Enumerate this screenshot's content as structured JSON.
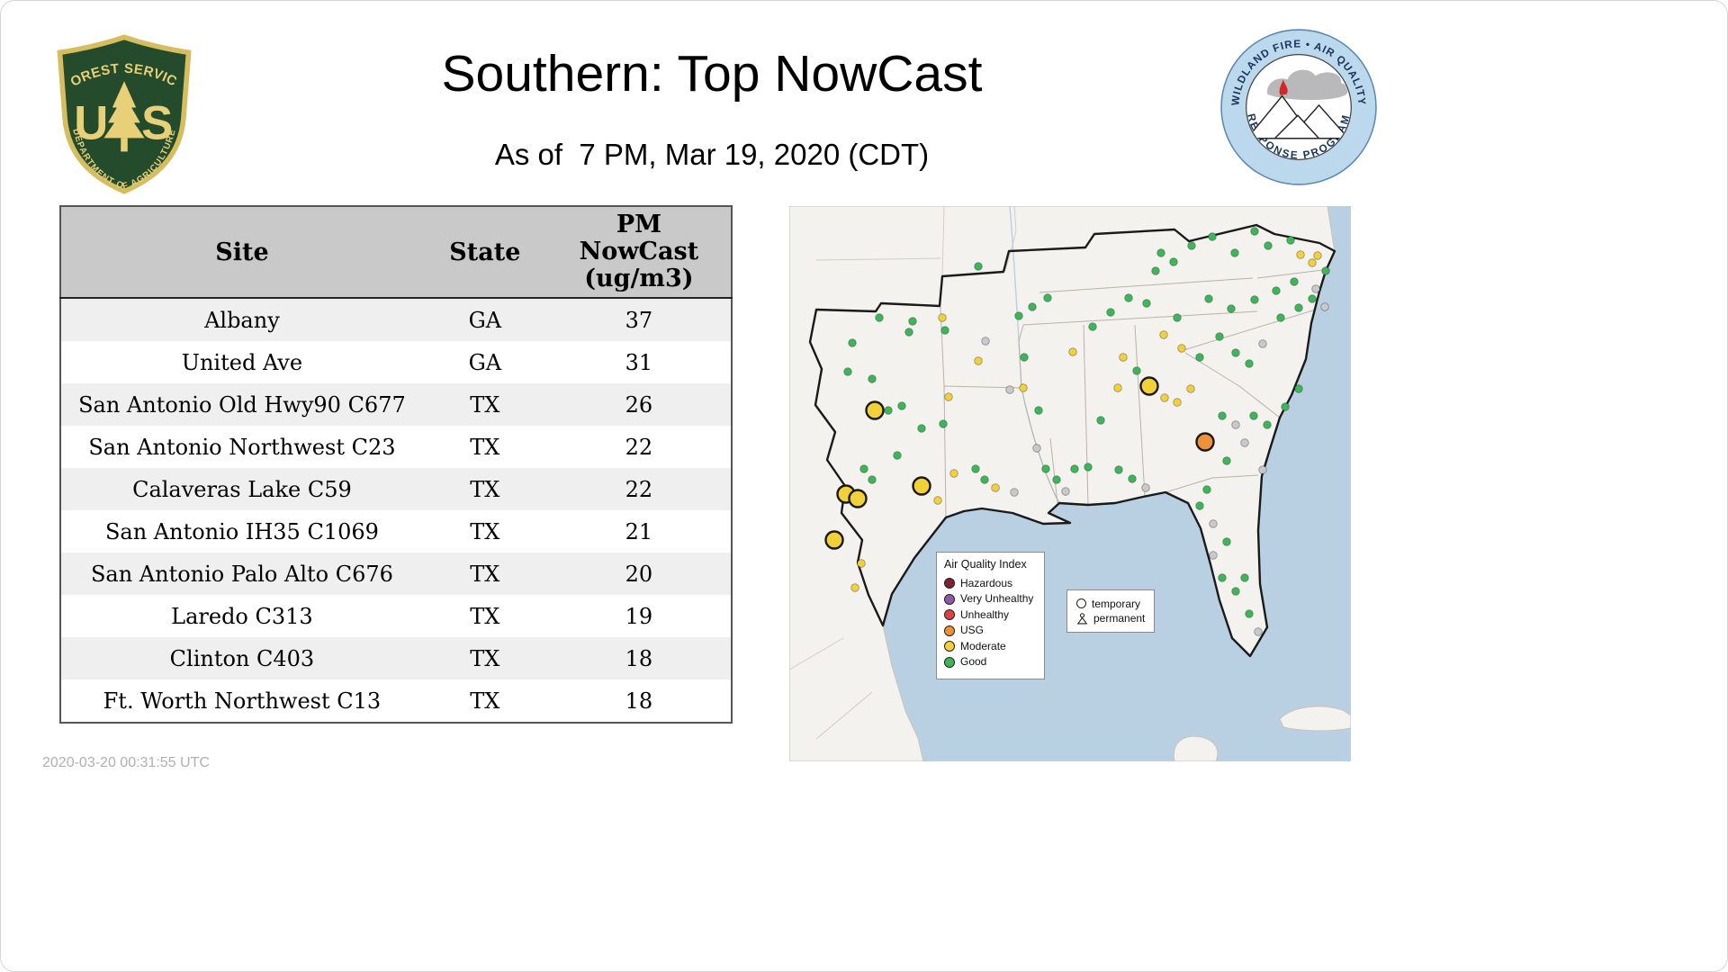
{
  "header": {
    "title": "Southern: Top NowCast",
    "subtitle": "As of  7 PM, Mar 19, 2020 (CDT)",
    "usfs_logo": {
      "arc_top": "FOREST SERVICE",
      "letter_u": "U",
      "letter_s": "S",
      "arc_bottom": "DEPARTMENT OF AGRICULTURE"
    },
    "wfaqrp_logo": {
      "arc_top": "WILDLAND FIRE • AIR QUALITY",
      "arc_bottom": "RESPONSE PROGRAM"
    }
  },
  "table": {
    "columns": [
      "Site",
      "State",
      "PM\nNowCast\n(ug/m3)"
    ],
    "rows": [
      [
        "Albany",
        "GA",
        "37"
      ],
      [
        "United Ave",
        "GA",
        "31"
      ],
      [
        "San Antonio Old Hwy90 C677",
        "TX",
        "26"
      ],
      [
        "San Antonio Northwest C23",
        "TX",
        "22"
      ],
      [
        "Calaveras Lake C59",
        "TX",
        "22"
      ],
      [
        "San Antonio IH35 C1069",
        "TX",
        "21"
      ],
      [
        "San Antonio Palo Alto C676",
        "TX",
        "20"
      ],
      [
        "Laredo C313",
        "TX",
        "19"
      ],
      [
        "Clinton C403",
        "TX",
        "18"
      ],
      [
        "Ft. Worth Northwest C13",
        "TX",
        "18"
      ]
    ]
  },
  "map": {
    "legend": {
      "title": "Air Quality Index",
      "items": [
        {
          "label": "Hazardous",
          "color": "#7e2134"
        },
        {
          "label": "Very Unhealthy",
          "color": "#8f58a5"
        },
        {
          "label": "Unhealthy",
          "color": "#e23f42"
        },
        {
          "label": "USG",
          "color": "#ee9139"
        },
        {
          "label": "Moderate",
          "color": "#f2d03a"
        },
        {
          "label": "Good",
          "color": "#3bb659"
        }
      ]
    },
    "marker_legend": {
      "items": [
        {
          "label": "temporary",
          "symbol": "circle"
        },
        {
          "label": "permanent",
          "symbol": "person"
        }
      ]
    },
    "dot_colors": {
      "g": "#3bb659",
      "y": "#f2d03a",
      "o": "#ee9139",
      "n": "#c9c9c9"
    },
    "dot_format": "[x, y, aqi_color_key, size: 1=permanent small, 2=temporary large]",
    "dots": [
      [
        95,
        227,
        "y",
        2
      ],
      [
        63,
        320,
        "y",
        2
      ],
      [
        76,
        325,
        "y",
        2
      ],
      [
        50,
        371,
        "y",
        2
      ],
      [
        147,
        311,
        "y",
        2
      ],
      [
        400,
        200,
        "y",
        2
      ],
      [
        462,
        262,
        "o",
        2
      ],
      [
        70,
        152,
        "g",
        1
      ],
      [
        100,
        124,
        "g",
        1
      ],
      [
        133,
        140,
        "g",
        1
      ],
      [
        137,
        128,
        "g",
        1
      ],
      [
        65,
        184,
        "g",
        1
      ],
      [
        92,
        192,
        "g",
        1
      ],
      [
        173,
        138,
        "g",
        1
      ],
      [
        170,
        124,
        "y",
        1
      ],
      [
        110,
        227,
        "g",
        1
      ],
      [
        125,
        222,
        "g",
        1
      ],
      [
        83,
        292,
        "g",
        1
      ],
      [
        92,
        304,
        "g",
        1
      ],
      [
        147,
        247,
        "g",
        1
      ],
      [
        171,
        242,
        "g",
        1
      ],
      [
        177,
        212,
        "y",
        1
      ],
      [
        210,
        172,
        "y",
        1
      ],
      [
        218,
        150,
        "n",
        1
      ],
      [
        245,
        204,
        "n",
        1
      ],
      [
        183,
        297,
        "y",
        1
      ],
      [
        207,
        292,
        "g",
        1
      ],
      [
        217,
        304,
        "g",
        1
      ],
      [
        229,
        313,
        "y",
        1
      ],
      [
        250,
        318,
        "n",
        1
      ],
      [
        80,
        397,
        "y",
        1
      ],
      [
        73,
        424,
        "y",
        1
      ],
      [
        120,
        277,
        "g",
        1
      ],
      [
        165,
        327,
        "y",
        1
      ],
      [
        260,
        202,
        "y",
        1
      ],
      [
        277,
        227,
        "g",
        1
      ],
      [
        285,
        292,
        "g",
        1
      ],
      [
        297,
        304,
        "g",
        1
      ],
      [
        307,
        317,
        "n",
        1
      ],
      [
        317,
        292,
        "g",
        1
      ],
      [
        332,
        290,
        "g",
        1
      ],
      [
        275,
        269,
        "n",
        1
      ],
      [
        210,
        67,
        "g",
        1
      ],
      [
        255,
        122,
        "g",
        1
      ],
      [
        270,
        112,
        "g",
        1
      ],
      [
        287,
        102,
        "g",
        1
      ],
      [
        261,
        168,
        "g",
        1
      ],
      [
        315,
        162,
        "y",
        1
      ],
      [
        337,
        134,
        "g",
        1
      ],
      [
        357,
        118,
        "g",
        1
      ],
      [
        377,
        102,
        "g",
        1
      ],
      [
        397,
        108,
        "g",
        1
      ],
      [
        407,
        72,
        "g",
        1
      ],
      [
        427,
        62,
        "g",
        1
      ],
      [
        447,
        44,
        "g",
        1
      ],
      [
        413,
        52,
        "g",
        1
      ],
      [
        470,
        34,
        "g",
        1
      ],
      [
        495,
        52,
        "g",
        1
      ],
      [
        517,
        28,
        "g",
        1
      ],
      [
        532,
        44,
        "g",
        1
      ],
      [
        557,
        38,
        "g",
        1
      ],
      [
        568,
        54,
        "y",
        1
      ],
      [
        581,
        63,
        "y",
        1
      ],
      [
        587,
        55,
        "y",
        1
      ],
      [
        596,
        72,
        "g",
        1
      ],
      [
        561,
        84,
        "g",
        1
      ],
      [
        541,
        94,
        "g",
        1
      ],
      [
        517,
        104,
        "g",
        1
      ],
      [
        491,
        114,
        "g",
        1
      ],
      [
        466,
        103,
        "g",
        1
      ],
      [
        431,
        124,
        "g",
        1
      ],
      [
        416,
        143,
        "y",
        1
      ],
      [
        436,
        158,
        "y",
        1
      ],
      [
        456,
        168,
        "g",
        1
      ],
      [
        478,
        145,
        "g",
        1
      ],
      [
        496,
        163,
        "g",
        1
      ],
      [
        511,
        175,
        "g",
        1
      ],
      [
        526,
        153,
        "n",
        1
      ],
      [
        546,
        124,
        "g",
        1
      ],
      [
        566,
        113,
        "g",
        1
      ],
      [
        581,
        103,
        "g",
        1
      ],
      [
        365,
        202,
        "y",
        1
      ],
      [
        417,
        213,
        "y",
        1
      ],
      [
        431,
        218,
        "y",
        1
      ],
      [
        446,
        203,
        "y",
        1
      ],
      [
        481,
        233,
        "g",
        1
      ],
      [
        496,
        243,
        "n",
        1
      ],
      [
        516,
        233,
        "g",
        1
      ],
      [
        531,
        243,
        "g",
        1
      ],
      [
        551,
        223,
        "g",
        1
      ],
      [
        566,
        203,
        "g",
        1
      ],
      [
        506,
        263,
        "n",
        1
      ],
      [
        486,
        283,
        "g",
        1
      ],
      [
        526,
        293,
        "n",
        1
      ],
      [
        366,
        293,
        "g",
        1
      ],
      [
        381,
        303,
        "g",
        1
      ],
      [
        396,
        313,
        "n",
        1
      ],
      [
        346,
        238,
        "g",
        1
      ],
      [
        371,
        168,
        "y",
        1
      ],
      [
        386,
        183,
        "g",
        1
      ],
      [
        456,
        333,
        "g",
        1
      ],
      [
        471,
        353,
        "n",
        1
      ],
      [
        486,
        373,
        "g",
        1
      ],
      [
        471,
        388,
        "n",
        1
      ],
      [
        481,
        413,
        "g",
        1
      ],
      [
        496,
        428,
        "g",
        1
      ],
      [
        511,
        453,
        "g",
        1
      ],
      [
        521,
        473,
        "n",
        1
      ],
      [
        506,
        413,
        "g",
        1
      ],
      [
        464,
        315,
        "g",
        1
      ],
      [
        585,
        92,
        "n",
        1
      ],
      [
        595,
        112,
        "n",
        1
      ]
    ]
  },
  "footer": {
    "generated": "2020-03-20 00:31:55 UTC"
  }
}
